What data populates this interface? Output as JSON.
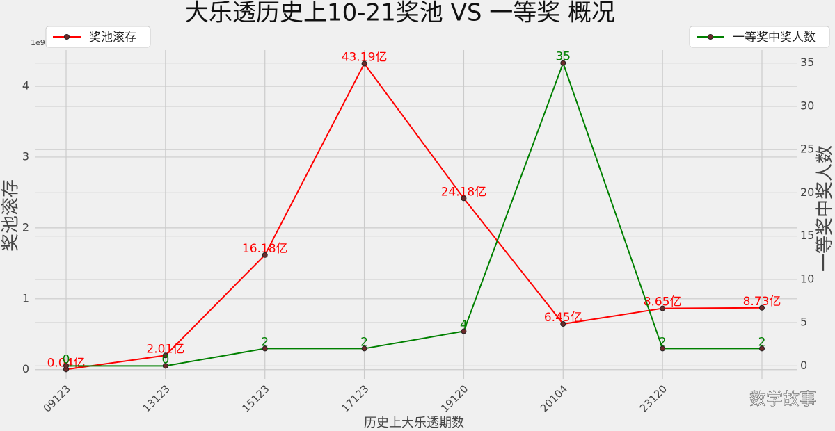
{
  "chart_data": {
    "type": "line",
    "title": "大乐透历史上10-21奖池 VS 一等奖 概况",
    "x_label": "历史上大乐透期数",
    "y_label": "奖池滚存",
    "y2_label": "一等奖中奖人数",
    "y_offset_label": "1e9",
    "watermark": "数学故事",
    "categories": [
      "09123",
      "13123",
      "15123",
      "17123",
      "19120",
      "20104",
      "23120",
      null
    ],
    "series": [
      {
        "name": "奖池滚存",
        "color": "#ff0000",
        "legend_loc": "upper left",
        "values": [
          4000000,
          201000000,
          1618000000,
          4319000000,
          2418000000,
          645000000,
          865000000,
          873000000
        ],
        "value_labels": [
          "0.04亿",
          "2.01亿",
          "16.18亿",
          "43.19亿",
          "24.18亿",
          "6.45亿",
          "8.65亿",
          "8.73亿"
        ]
      },
      {
        "name": "一等奖中奖人数",
        "color": "#008000",
        "axis": "y2",
        "legend_loc": "upper right",
        "values": [
          0,
          0,
          2,
          2,
          4,
          35,
          2,
          2
        ]
      }
    ],
    "ylim": [
      -130000000,
      4510000000
    ],
    "yticks": [
      {
        "value": 0,
        "label": "0"
      },
      {
        "value": 1000000000,
        "label": "1"
      },
      {
        "value": 2000000000,
        "label": "2"
      },
      {
        "value": 3000000000,
        "label": "3"
      },
      {
        "value": 4000000000,
        "label": "4"
      }
    ],
    "y2lim": [
      -1.5,
      36.5
    ],
    "y2ticks": [
      0,
      5,
      10,
      15,
      20,
      25,
      30,
      35
    ],
    "grid": true
  }
}
